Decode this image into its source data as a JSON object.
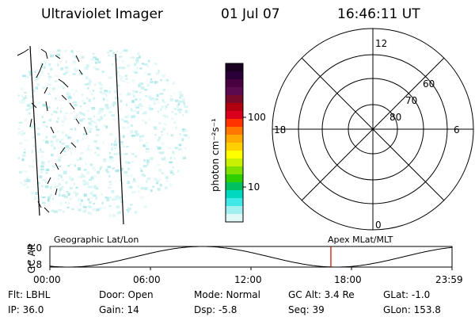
{
  "header": {
    "title": "Ultraviolet Imager",
    "date": "01 Jul 07",
    "time": "16:46:11 UT"
  },
  "colorbar": {
    "label": "photon cm⁻²s⁻¹",
    "ticks": [
      "100",
      "10"
    ],
    "colors": [
      "#1a0020",
      "#2a0038",
      "#4a0040",
      "#5c0a50",
      "#7a0a2a",
      "#b00010",
      "#d8001c",
      "#ff3300",
      "#ff7700",
      "#ffaa00",
      "#ffd000",
      "#ffff00",
      "#c8f000",
      "#80e000",
      "#30d000",
      "#00c060",
      "#00d8c0",
      "#40e8e8",
      "#a0f0f0",
      "#e0f8f8"
    ]
  },
  "polar": {
    "mlt_labels": {
      "top": "12",
      "right": "6",
      "bottom": "0",
      "left": "18"
    },
    "lat_labels": [
      "60",
      "70",
      "80"
    ]
  },
  "timeline": {
    "ylabel": "GC Alt",
    "ymax": "9.0",
    "ymin": "1.8",
    "left_label": "Geographic Lat/Lon",
    "right_label": "Apex MLat/MLT",
    "ticks": [
      "00:00",
      "06:00",
      "12:00",
      "18:00",
      "23:59"
    ],
    "current_hour": 16.77,
    "marker_color": "#cc0000"
  },
  "info": {
    "flt": "Flt: LBHL",
    "ip": "IP: 36.0",
    "door": "Door: Open",
    "gain": "Gain: 14",
    "mode": "Mode: Normal",
    "dsp": "Dsp:    -5.8",
    "gcalt": "GC Alt: 3.4 Re",
    "seq": "Seq: 39",
    "glat": "GLat:   -1.0",
    "glon": "GLon: 153.8"
  }
}
